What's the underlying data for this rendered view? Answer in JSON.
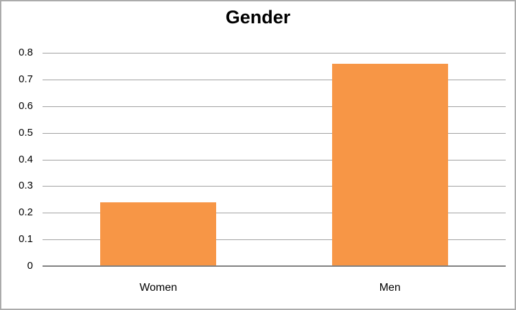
{
  "chart_data": {
    "type": "bar",
    "title": "Gender",
    "categories": [
      "Women",
      "Men"
    ],
    "values": [
      0.24,
      0.76
    ],
    "ylim": [
      0,
      0.8
    ],
    "ytick_step": 0.1,
    "yticks": [
      "0",
      "0.1",
      "0.2",
      "0.3",
      "0.4",
      "0.5",
      "0.6",
      "0.7",
      "0.8"
    ],
    "xlabel": "",
    "ylabel": "",
    "grid": true,
    "legend": "none",
    "bar_gap_ratio": 0.5,
    "colors": {
      "bar": "#F79646",
      "gridline": "#A0A0A0",
      "axis": "#7F7F7F",
      "chart_border": "#ABABAB",
      "background": "#FFFFFF",
      "text": "#000000"
    }
  }
}
